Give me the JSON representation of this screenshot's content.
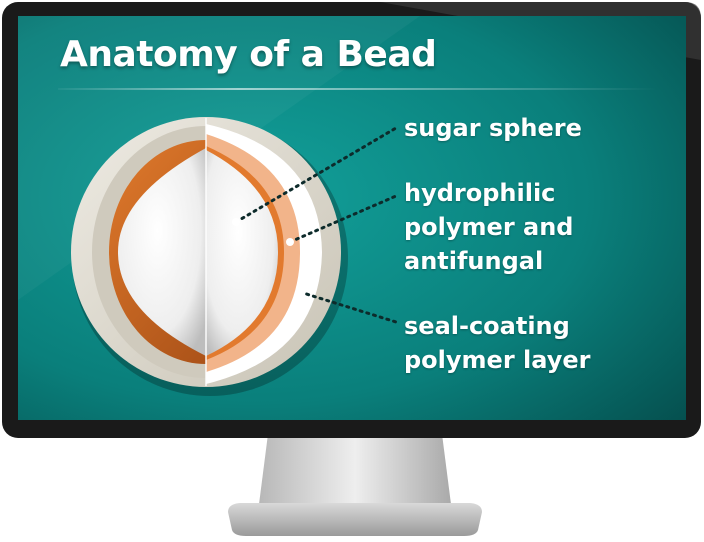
{
  "slide": {
    "title": "Anatomy of a Bead"
  },
  "labels": {
    "sugar_sphere": "sugar sphere",
    "hydrophilic": "hydrophilic polymer and antifungal",
    "seal_coating": "seal-coating polymer layer"
  },
  "colors": {
    "screen_teal": "#0b8a86",
    "screen_teal_dark": "#06504f",
    "bezel": "#1c1c1c",
    "orange_layer": "#c8641f",
    "peach_layer": "#f2b48a",
    "outer_layer": "#dcd8cc",
    "core": "#f4f4f4"
  }
}
